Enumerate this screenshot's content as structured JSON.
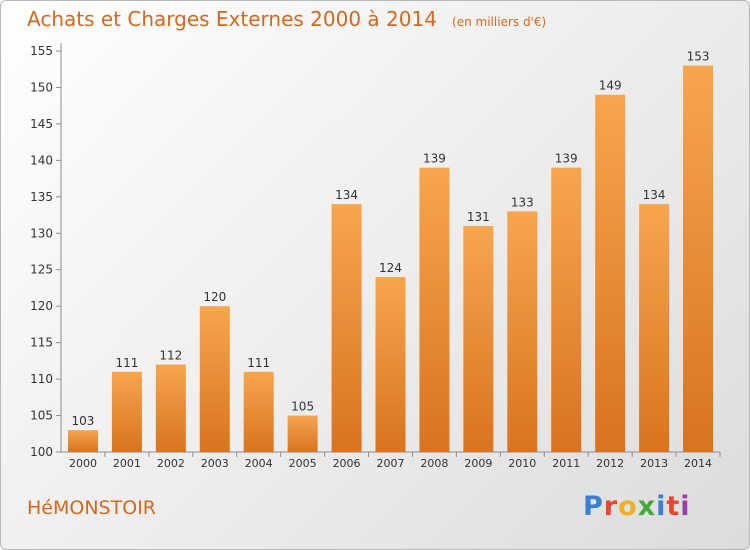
{
  "chart_data": {
    "type": "bar",
    "title": "Achats et Charges Externes 2000 à 2014",
    "unit": "(en milliers d'€)",
    "categories": [
      "2000",
      "2001",
      "2002",
      "2003",
      "2004",
      "2005",
      "2006",
      "2007",
      "2008",
      "2009",
      "2010",
      "2011",
      "2012",
      "2013",
      "2014"
    ],
    "values": [
      103,
      111,
      112,
      120,
      111,
      105,
      134,
      124,
      139,
      131,
      133,
      139,
      149,
      134,
      153
    ],
    "ylim": [
      100,
      155
    ],
    "yticks": [
      100,
      105,
      110,
      115,
      120,
      125,
      130,
      135,
      140,
      145,
      150,
      155
    ],
    "grid": false,
    "bar_color_top": "#f7a64e",
    "bar_color_bottom": "#d9731f"
  },
  "footer": {
    "commune": "HéMONSTOIR",
    "brand": "Proxiti",
    "brand_colors": [
      "#3a7fd4",
      "#e8462f",
      "#f2b01e",
      "#44a83d",
      "#3a7fd4",
      "#e8462f",
      "#9b3fb0"
    ]
  },
  "colors": {
    "accent": "#d2691e",
    "axis": "#8c8c8c",
    "text": "#333333"
  }
}
